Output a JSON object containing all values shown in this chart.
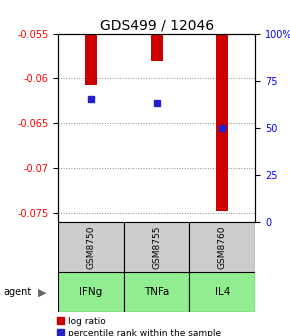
{
  "title": "GDS499 / 12046",
  "samples": [
    "GSM8750",
    "GSM8755",
    "GSM8760"
  ],
  "agents": [
    "IFNg",
    "TNFa",
    "IL4"
  ],
  "log_ratios": [
    -0.0607,
    -0.0581,
    -0.0748
  ],
  "percentile_ranks": [
    65,
    63,
    50
  ],
  "ylim_left": [
    -0.076,
    -0.055
  ],
  "ylim_right": [
    0,
    100
  ],
  "yticks_left": [
    -0.075,
    -0.07,
    -0.065,
    -0.06,
    -0.055
  ],
  "yticks_right": [
    0,
    25,
    50,
    75,
    100
  ],
  "ytick_labels_left": [
    "-0.075",
    "-0.07",
    "-0.065",
    "-0.06",
    "-0.055"
  ],
  "ytick_labels_right": [
    "0",
    "25",
    "50",
    "75",
    "100%"
  ],
  "bar_color": "#cc0000",
  "dot_color": "#2222cc",
  "sample_bg": "#cccccc",
  "agent_bg_color": "#90ee90",
  "title_fontsize": 10,
  "tick_fontsize": 7,
  "legend_fontsize": 6.5,
  "bar_width": 0.18
}
